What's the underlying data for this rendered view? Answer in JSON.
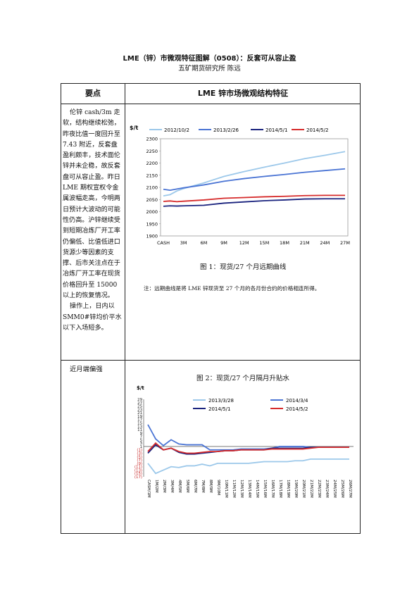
{
  "doc": {
    "title": "LME（锌）市微观特征图解（0508）：反套可从容止盈",
    "subtitle": "五矿期货研究所    陈远",
    "header_left": "要点",
    "header_right": "LME 锌市场微观结构特征",
    "left_paragraphs": [
      "伦锌 cash/3m 走软，结构继续松弛，昨夜比值一度回升至 7.43 附近，反套盘盈利颇丰，技术面伦锌并未企稳，故反套盘可从容止盈。昨日 LME 期权宣权令金属波幅走高，今明两日预计大波动的可能性仍高。沪锌继续受到短期冶炼厂开工率仍偏低、比值低进口货源少等因素的支撑、后市关注点在于冶炼厂开工率在现货价格回升至 15000 以上的恢复情况。",
      "操作上，日内以 SMM0#锌均价平水以下入场短多。"
    ],
    "left_row2": "近月端偏强",
    "figure1": {
      "caption": "图 1：现货/27 个月远期曲线",
      "note": "注：远期曲线是将 LME 锌现货至 27 个月的各月份合约的价格相连所得。"
    },
    "figure2": {
      "caption": "图 2：现货/27 个月隔月升贴水"
    }
  },
  "chart_data": [
    {
      "type": "line",
      "ylabel": "$/t",
      "ylim": [
        1900,
        2300
      ],
      "yticks": [
        1900,
        1950,
        2000,
        2050,
        2100,
        2150,
        2200,
        2250,
        2300
      ],
      "x_tick_labels": [
        "CASH",
        "3M",
        "6M",
        "9M",
        "12M",
        "15M",
        "18M",
        "21M",
        "24M",
        "27M"
      ],
      "x_tick_months": [
        0,
        3,
        6,
        9,
        12,
        15,
        18,
        21,
        24,
        27
      ],
      "grid": false,
      "legend_position": "top",
      "series": [
        {
          "name": "2012/10/2",
          "color": "#9cc8ea",
          "x": [
            0,
            1,
            2,
            3,
            6,
            9,
            12,
            15,
            18,
            21,
            24,
            27
          ],
          "y": [
            2065,
            2070,
            2085,
            2095,
            2118,
            2145,
            2165,
            2183,
            2200,
            2218,
            2232,
            2247
          ]
        },
        {
          "name": "2013/2/26",
          "color": "#4a74d4",
          "x": [
            0,
            1,
            2,
            3,
            6,
            9,
            12,
            15,
            18,
            21,
            24,
            27
          ],
          "y": [
            2092,
            2088,
            2093,
            2098,
            2110,
            2125,
            2136,
            2145,
            2153,
            2162,
            2169,
            2176
          ]
        },
        {
          "name": "2014/5/1",
          "color": "#1a237e",
          "x": [
            0,
            1,
            2,
            3,
            6,
            9,
            12,
            15,
            18,
            21,
            24,
            27
          ],
          "y": [
            2022,
            2024,
            2023,
            2024,
            2026,
            2035,
            2040,
            2045,
            2048,
            2052,
            2053,
            2053
          ]
        },
        {
          "name": "2014/5/2",
          "color": "#d62b2b",
          "x": [
            0,
            1,
            2,
            3,
            6,
            9,
            12,
            15,
            18,
            21,
            24,
            27
          ],
          "y": [
            2042,
            2044,
            2041,
            2043,
            2048,
            2055,
            2058,
            2061,
            2063,
            2066,
            2067,
            2067
          ]
        }
      ]
    },
    {
      "type": "line",
      "ylabel": "$/t",
      "ylim": [
        -17,
        29
      ],
      "ytick_labels": [
        "29",
        "27",
        "25",
        "23",
        "21",
        "19",
        "17",
        "15",
        "13",
        "11",
        "9",
        "7",
        "5",
        "3",
        "1",
        "(1)",
        "(3)",
        "(5)",
        "(7)",
        "(9)",
        "(11)",
        "(13)",
        "(15)",
        "(17)"
      ],
      "ytick_values": [
        29,
        27,
        25,
        23,
        21,
        19,
        17,
        15,
        13,
        11,
        9,
        7,
        5,
        3,
        1,
        -1,
        -3,
        -5,
        -7,
        -9,
        -11,
        -13,
        -15,
        -17
      ],
      "x_tick_labels": [
        "CASH/1M",
        "1M/2M",
        "2M/3M",
        "3M/4M",
        "4M/5M",
        "5M/6M",
        "6M/7M",
        "7M/8M",
        "8M/9M",
        "9M/10M",
        "10M/11M",
        "11M/12M",
        "12M/13M",
        "13M/14M",
        "14M/15M",
        "15M/16M",
        "16M/17M",
        "17M/18M",
        "18M/19M",
        "19M/20M",
        "20M/21M",
        "21M/22M",
        "22M/23M",
        "23M/24M",
        "24M/25M",
        "25M/26M",
        "26M/27M"
      ],
      "grid": false,
      "legend_position": "top",
      "series": [
        {
          "name": "2013/3/28",
          "color": "#9cc8ea",
          "values": [
            -9,
            -15,
            -13,
            -11,
            -11.5,
            -10.5,
            -10.5,
            -9.5,
            -10.5,
            -9,
            -9,
            -9,
            -9,
            -9,
            -8.5,
            -8,
            -8,
            -8,
            -8,
            -7.5,
            -7.5,
            -6.5,
            -6.5,
            -6.5,
            -6.5,
            -6.5,
            -6.5
          ]
        },
        {
          "name": "2014/3/4",
          "color": "#4a74d4",
          "values": [
            14,
            5.5,
            1.5,
            5,
            2.5,
            2,
            2,
            2,
            -1,
            -1,
            -1,
            -1,
            -0.5,
            -0.5,
            -0.5,
            -0.5,
            0,
            1,
            1,
            1,
            1,
            0.5,
            0.5,
            0.5,
            0.5,
            0.5,
            0.5
          ]
        },
        {
          "name": "2014/5/1",
          "color": "#1a237e",
          "values": [
            -3,
            2,
            -1,
            0,
            -2.5,
            -3.5,
            -3.5,
            -3,
            -2.5,
            -2,
            -1.5,
            -1.5,
            -1,
            -1,
            -1,
            -1,
            0,
            0,
            0,
            0,
            0,
            0.5,
            0.5,
            0.5,
            0.5,
            0.5,
            0.5
          ]
        },
        {
          "name": "2014/5/2",
          "color": "#d62b2b",
          "values": [
            -2,
            3,
            -1,
            0,
            -2,
            -3,
            -3,
            -2.5,
            -2,
            -2,
            -1.5,
            -1.5,
            -1,
            -1,
            -1,
            -1,
            -0.5,
            -0.5,
            -0.5,
            -0.5,
            -0.5,
            0,
            0.5,
            0.5,
            0.5,
            0.5,
            0.5
          ]
        }
      ]
    }
  ]
}
